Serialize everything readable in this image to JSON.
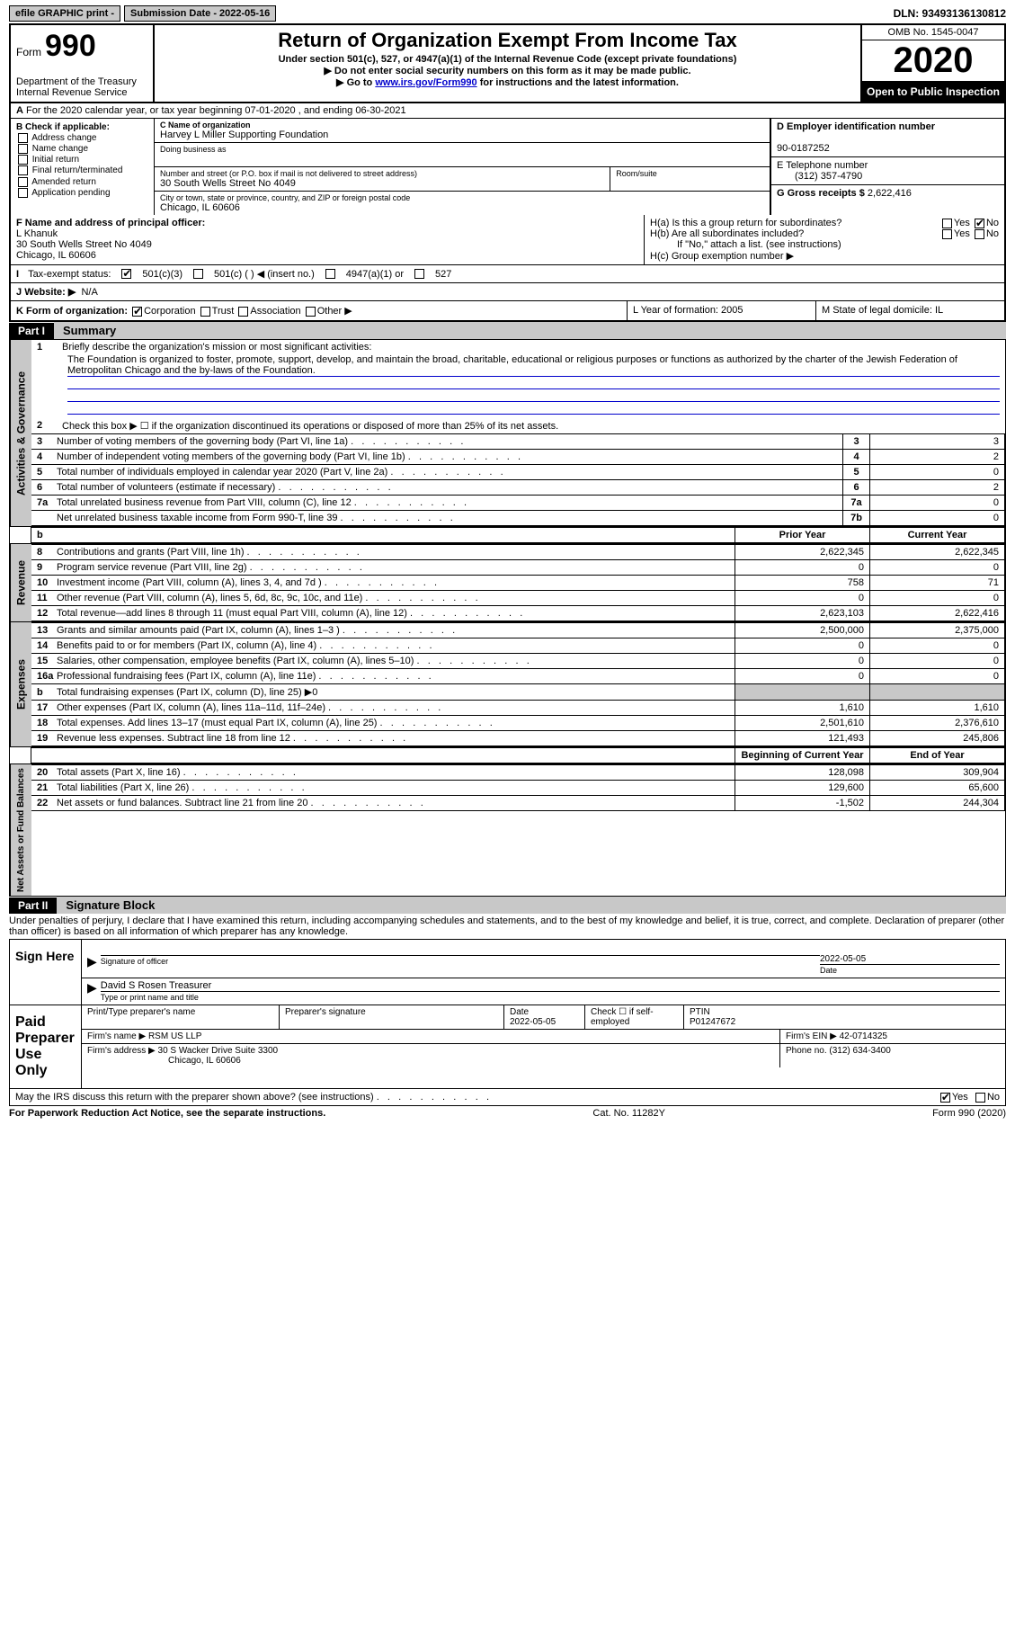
{
  "top": {
    "efile": "efile GRAPHIC print -",
    "submission": "Submission Date - 2022-05-16",
    "dln": "DLN: 93493136130812"
  },
  "header": {
    "form_label": "Form",
    "form_number": "990",
    "dept": "Department of the Treasury\nInternal Revenue Service",
    "title": "Return of Organization Exempt From Income Tax",
    "subtitle": "Under section 501(c), 527, or 4947(a)(1) of the Internal Revenue Code (except private foundations)",
    "instr1": "▶ Do not enter social security numbers on this form as it may be made public.",
    "instr2_pre": "▶ Go to ",
    "instr2_link": "www.irs.gov/Form990",
    "instr2_post": " for instructions and the latest information.",
    "omb": "OMB No. 1545-0047",
    "year": "2020",
    "open": "Open to Public Inspection"
  },
  "rowA": "For the 2020 calendar year, or tax year beginning 07-01-2020   , and ending 06-30-2021",
  "B": {
    "header": "B Check if applicable:",
    "opts": [
      "Address change",
      "Name change",
      "Initial return",
      "Final return/terminated",
      "Amended return",
      "Application pending"
    ]
  },
  "C": {
    "name_lbl": "C Name of organization",
    "name": "Harvey L Miller Supporting Foundation",
    "dba_lbl": "Doing business as",
    "addr_lbl": "Number and street (or P.O. box if mail is not delivered to street address)",
    "room_lbl": "Room/suite",
    "addr": "30 South Wells Street No 4049",
    "city_lbl": "City or town, state or province, country, and ZIP or foreign postal code",
    "city": "Chicago, IL  60606"
  },
  "D": {
    "lbl": "D Employer identification number",
    "val": "90-0187252"
  },
  "E": {
    "lbl": "E Telephone number",
    "val": "(312) 357-4790"
  },
  "G": {
    "lbl": "G Gross receipts $",
    "val": "2,622,416"
  },
  "F": {
    "lbl": "F  Name and address of principal officer:",
    "name": "L Khanuk",
    "addr1": "30 South Wells Street No 4049",
    "addr2": "Chicago, IL  60606"
  },
  "H": {
    "a": "H(a)  Is this a group return for subordinates?",
    "b": "H(b)  Are all subordinates included?",
    "note": "If \"No,\" attach a list. (see instructions)",
    "c": "H(c)  Group exemption number ▶",
    "yes": "Yes",
    "no": "No"
  },
  "I": {
    "lbl": "Tax-exempt status:",
    "o1": "501(c)(3)",
    "o2": "501(c) (  ) ◀ (insert no.)",
    "o3": "4947(a)(1) or",
    "o4": "527"
  },
  "J": {
    "lbl": "Website: ▶",
    "val": "N/A"
  },
  "K": {
    "lbl": "K Form of organization:",
    "o1": "Corporation",
    "o2": "Trust",
    "o3": "Association",
    "o4": "Other ▶"
  },
  "L": "L Year of formation: 2005",
  "M": "M State of legal domicile: IL",
  "part1": {
    "tab": "Part I",
    "title": "Summary"
  },
  "mission": {
    "lead": "Briefly describe the organization's mission or most significant activities:",
    "text": "The Foundation is organized to foster, promote, support, develop, and maintain the broad, charitable, educational or religious purposes or functions as authorized by the charter of the Jewish Federation of Metropolitan Chicago and the by-laws of the Foundation."
  },
  "sections": {
    "gov": {
      "label": "Activities & Governance",
      "l2": "Check this box ▶ ☐  if the organization discontinued its operations or disposed of more than 25% of its net assets.",
      "rows": [
        {
          "n": "3",
          "t": "Number of voting members of the governing body (Part VI, line 1a)",
          "rn": "3",
          "v": "3"
        },
        {
          "n": "4",
          "t": "Number of independent voting members of the governing body (Part VI, line 1b)",
          "rn": "4",
          "v": "2"
        },
        {
          "n": "5",
          "t": "Total number of individuals employed in calendar year 2020 (Part V, line 2a)",
          "rn": "5",
          "v": "0"
        },
        {
          "n": "6",
          "t": "Total number of volunteers (estimate if necessary)",
          "rn": "6",
          "v": "2"
        },
        {
          "n": "7a",
          "t": "Total unrelated business revenue from Part VIII, column (C), line 12",
          "rn": "7a",
          "v": "0"
        },
        {
          "n": "",
          "t": "Net unrelated business taxable income from Form 990-T, line 39",
          "rn": "7b",
          "v": "0"
        }
      ]
    },
    "rev": {
      "label": "Revenue",
      "hdr1": "Prior Year",
      "hdr2": "Current Year",
      "rows": [
        {
          "n": "8",
          "t": "Contributions and grants (Part VIII, line 1h)",
          "p": "2,622,345",
          "c": "2,622,345"
        },
        {
          "n": "9",
          "t": "Program service revenue (Part VIII, line 2g)",
          "p": "0",
          "c": "0"
        },
        {
          "n": "10",
          "t": "Investment income (Part VIII, column (A), lines 3, 4, and 7d )",
          "p": "758",
          "c": "71"
        },
        {
          "n": "11",
          "t": "Other revenue (Part VIII, column (A), lines 5, 6d, 8c, 9c, 10c, and 11e)",
          "p": "0",
          "c": "0"
        },
        {
          "n": "12",
          "t": "Total revenue—add lines 8 through 11 (must equal Part VIII, column (A), line 12)",
          "p": "2,623,103",
          "c": "2,622,416"
        }
      ]
    },
    "exp": {
      "label": "Expenses",
      "rows": [
        {
          "n": "13",
          "t": "Grants and similar amounts paid (Part IX, column (A), lines 1–3 )",
          "p": "2,500,000",
          "c": "2,375,000"
        },
        {
          "n": "14",
          "t": "Benefits paid to or for members (Part IX, column (A), line 4)",
          "p": "0",
          "c": "0"
        },
        {
          "n": "15",
          "t": "Salaries, other compensation, employee benefits (Part IX, column (A), lines 5–10)",
          "p": "0",
          "c": "0"
        },
        {
          "n": "16a",
          "t": "Professional fundraising fees (Part IX, column (A), line 11e)",
          "p": "0",
          "c": "0"
        },
        {
          "n": "b",
          "t": "Total fundraising expenses (Part IX, column (D), line 25) ▶0",
          "shade": true
        },
        {
          "n": "17",
          "t": "Other expenses (Part IX, column (A), lines 11a–11d, 11f–24e)",
          "p": "1,610",
          "c": "1,610"
        },
        {
          "n": "18",
          "t": "Total expenses. Add lines 13–17 (must equal Part IX, column (A), line 25)",
          "p": "2,501,610",
          "c": "2,376,610"
        },
        {
          "n": "19",
          "t": "Revenue less expenses. Subtract line 18 from line 12",
          "p": "121,493",
          "c": "245,806"
        }
      ]
    },
    "net": {
      "label": "Net Assets or Fund Balances",
      "hdr1": "Beginning of Current Year",
      "hdr2": "End of Year",
      "rows": [
        {
          "n": "20",
          "t": "Total assets (Part X, line 16)",
          "p": "128,098",
          "c": "309,904"
        },
        {
          "n": "21",
          "t": "Total liabilities (Part X, line 26)",
          "p": "129,600",
          "c": "65,600"
        },
        {
          "n": "22",
          "t": "Net assets or fund balances. Subtract line 21 from line 20",
          "p": "-1,502",
          "c": "244,304"
        }
      ]
    }
  },
  "part2": {
    "tab": "Part II",
    "title": "Signature Block"
  },
  "penalties": "Under penalties of perjury, I declare that I have examined this return, including accompanying schedules and statements, and to the best of my knowledge and belief, it is true, correct, and complete. Declaration of preparer (other than officer) is based on all information of which preparer has any knowledge.",
  "sign": {
    "here": "Sign Here",
    "sig_lbl": "Signature of officer",
    "date_lbl": "Date",
    "date_val": "2022-05-05",
    "name": "David S Rosen  Treasurer",
    "name_lbl": "Type or print name and title"
  },
  "paid": {
    "label": "Paid Preparer Use Only",
    "h1": "Print/Type preparer's name",
    "h2": "Preparer's signature",
    "h3": "Date",
    "h3v": "2022-05-05",
    "h4": "Check ☐ if self-employed",
    "h5": "PTIN",
    "h5v": "P01247672",
    "firm_lbl": "Firm's name    ▶",
    "firm_val": "RSM US LLP",
    "ein_lbl": "Firm's EIN ▶",
    "ein_val": "42-0714325",
    "addr_lbl": "Firm's address ▶",
    "addr_val": "30 S Wacker Drive Suite 3300",
    "addr_city": "Chicago, IL  60606",
    "phone_lbl": "Phone no.",
    "phone_val": "(312) 634-3400"
  },
  "discuss": "May the IRS discuss this return with the preparer shown above? (see instructions)",
  "yes": "Yes",
  "no": "No",
  "footer": {
    "left": "For Paperwork Reduction Act Notice, see the separate instructions.",
    "mid": "Cat. No. 11282Y",
    "right": "Form 990 (2020)"
  }
}
